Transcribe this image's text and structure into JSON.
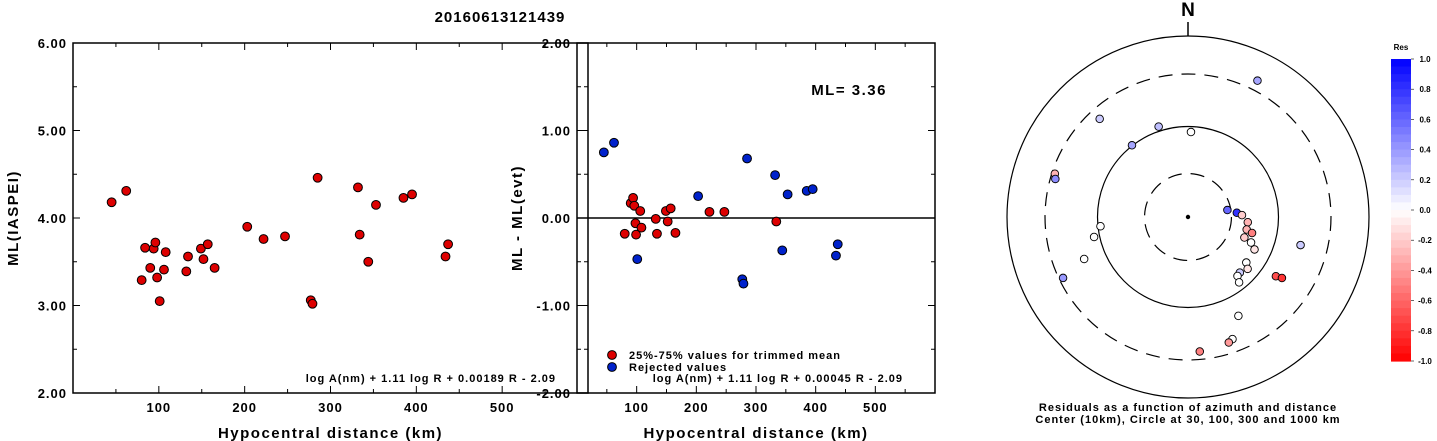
{
  "title": "20160613121439",
  "chart_data": [
    {
      "type": "scatter",
      "ylabel": "ML(IASPEI)",
      "xlabel": "Hypocentral distance (km)",
      "xlim": [
        0,
        600
      ],
      "ylim": [
        2.0,
        6.0
      ],
      "xticks": [
        "100",
        "200",
        "300",
        "400",
        "500"
      ],
      "yticks": [
        "2.00",
        "3.00",
        "4.00",
        "5.00",
        "6.00"
      ],
      "formula": "log A(nm) + 1.11 log R + 0.00189 R - 2.09",
      "series": [
        {
          "color": "#dd0000",
          "points": [
            [
              45,
              4.18
            ],
            [
              62,
              4.31
            ],
            [
              80,
              3.29
            ],
            [
              84,
              3.66
            ],
            [
              90,
              3.43
            ],
            [
              94,
              3.65
            ],
            [
              96,
              3.72
            ],
            [
              98,
              3.32
            ],
            [
              101,
              3.05
            ],
            [
              106,
              3.41
            ],
            [
              108,
              3.61
            ],
            [
              132,
              3.39
            ],
            [
              134,
              3.56
            ],
            [
              149,
              3.65
            ],
            [
              152,
              3.53
            ],
            [
              157,
              3.7
            ],
            [
              165,
              3.43
            ],
            [
              203,
              3.9
            ],
            [
              222,
              3.76
            ],
            [
              247,
              3.79
            ],
            [
              277,
              3.06
            ],
            [
              279,
              3.02
            ],
            [
              285,
              4.46
            ],
            [
              332,
              4.35
            ],
            [
              334,
              3.81
            ],
            [
              344,
              3.5
            ],
            [
              353,
              4.15
            ],
            [
              385,
              4.23
            ],
            [
              395,
              4.27
            ],
            [
              434,
              3.56
            ],
            [
              437,
              3.7
            ]
          ]
        }
      ]
    },
    {
      "type": "scatter",
      "ylabel": "ML - ML(evt)",
      "xlabel": "Hypocentral distance (km)",
      "xlim": [
        0,
        600
      ],
      "ylim": [
        -2.0,
        2.0
      ],
      "xticks": [
        "100",
        "200",
        "300",
        "400",
        "500"
      ],
      "yticks": [
        "-2.00",
        "-1.00",
        "0.00",
        "1.00",
        "2.00"
      ],
      "annotation": "ML= 3.36",
      "formula": "log A(nm) + 1.11 log R + 0.00045 R - 2.09",
      "series": [
        {
          "name": "25%-75% values for trimmed mean",
          "color": "#dd0000",
          "points": [
            [
              80,
              -0.18
            ],
            [
              90,
              0.17
            ],
            [
              94,
              0.23
            ],
            [
              96,
              0.14
            ],
            [
              98,
              -0.06
            ],
            [
              99,
              -0.19
            ],
            [
              106,
              0.08
            ],
            [
              108,
              -0.11
            ],
            [
              132,
              -0.01
            ],
            [
              134,
              -0.18
            ],
            [
              149,
              0.08
            ],
            [
              152,
              -0.04
            ],
            [
              157,
              0.11
            ],
            [
              165,
              -0.17
            ],
            [
              222,
              0.07
            ],
            [
              247,
              0.07
            ],
            [
              334,
              -0.04
            ]
          ]
        },
        {
          "name": "Rejected values",
          "color": "#0022cc",
          "points": [
            [
              45,
              0.75
            ],
            [
              62,
              0.86
            ],
            [
              101,
              -0.47
            ],
            [
              203,
              0.25
            ],
            [
              277,
              -0.7
            ],
            [
              279,
              -0.75
            ],
            [
              285,
              0.68
            ],
            [
              332,
              0.49
            ],
            [
              344,
              -0.37
            ],
            [
              353,
              0.27
            ],
            [
              385,
              0.31
            ],
            [
              395,
              0.33
            ],
            [
              434,
              -0.43
            ],
            [
              437,
              -0.3
            ]
          ]
        }
      ]
    }
  ],
  "polar": {
    "north_label": "N",
    "caption_line1": "Residuals as a function of azimuth and distance",
    "caption_line2": "Center (10km), Circle at 30, 100, 300 and 1000 km",
    "stations": [
      [
        -42,
        132,
        0.2
      ],
      [
        -18,
        95,
        0.25
      ],
      [
        -38,
        91,
        0.35
      ],
      [
        2,
        85,
        0.0
      ],
      [
        27,
        153,
        0.35
      ],
      [
        -72,
        140,
        -0.3
      ],
      [
        -74,
        138,
        0.45
      ],
      [
        -116,
        139,
        0.4
      ],
      [
        -112,
        112,
        0.0
      ],
      [
        104,
        116,
        0.2
      ],
      [
        80,
        40,
        0.6
      ],
      [
        85,
        49,
        0.8
      ],
      [
        -96,
        88,
        0.0
      ],
      [
        -102,
        96,
        0.0
      ],
      [
        88,
        54,
        -0.2
      ],
      [
        95,
        60,
        -0.3
      ],
      [
        102,
        60,
        -0.3
      ],
      [
        104,
        66,
        -0.5
      ],
      [
        110,
        60,
        -0.2
      ],
      [
        112,
        68,
        0.0
      ],
      [
        116,
        74,
        -0.1
      ],
      [
        128,
        74,
        0.0
      ],
      [
        131,
        79,
        -0.1
      ],
      [
        137,
        76,
        0.2
      ],
      [
        140,
        77,
        0.0
      ],
      [
        142,
        83,
        0.0
      ],
      [
        124,
        106,
        -0.7
      ],
      [
        123,
        112,
        -0.8
      ],
      [
        153,
        111,
        0.0
      ],
      [
        160,
        130,
        0.0
      ],
      [
        162,
        132,
        -0.4
      ],
      [
        175,
        135,
        -0.5
      ]
    ]
  },
  "colorbar": {
    "title": "Res",
    "labels": [
      "1.0",
      "0.8",
      "0.6",
      "0.4",
      "0.2",
      "0.0",
      "-0.2",
      "-0.4",
      "-0.6",
      "-0.8",
      "-1.0"
    ]
  }
}
